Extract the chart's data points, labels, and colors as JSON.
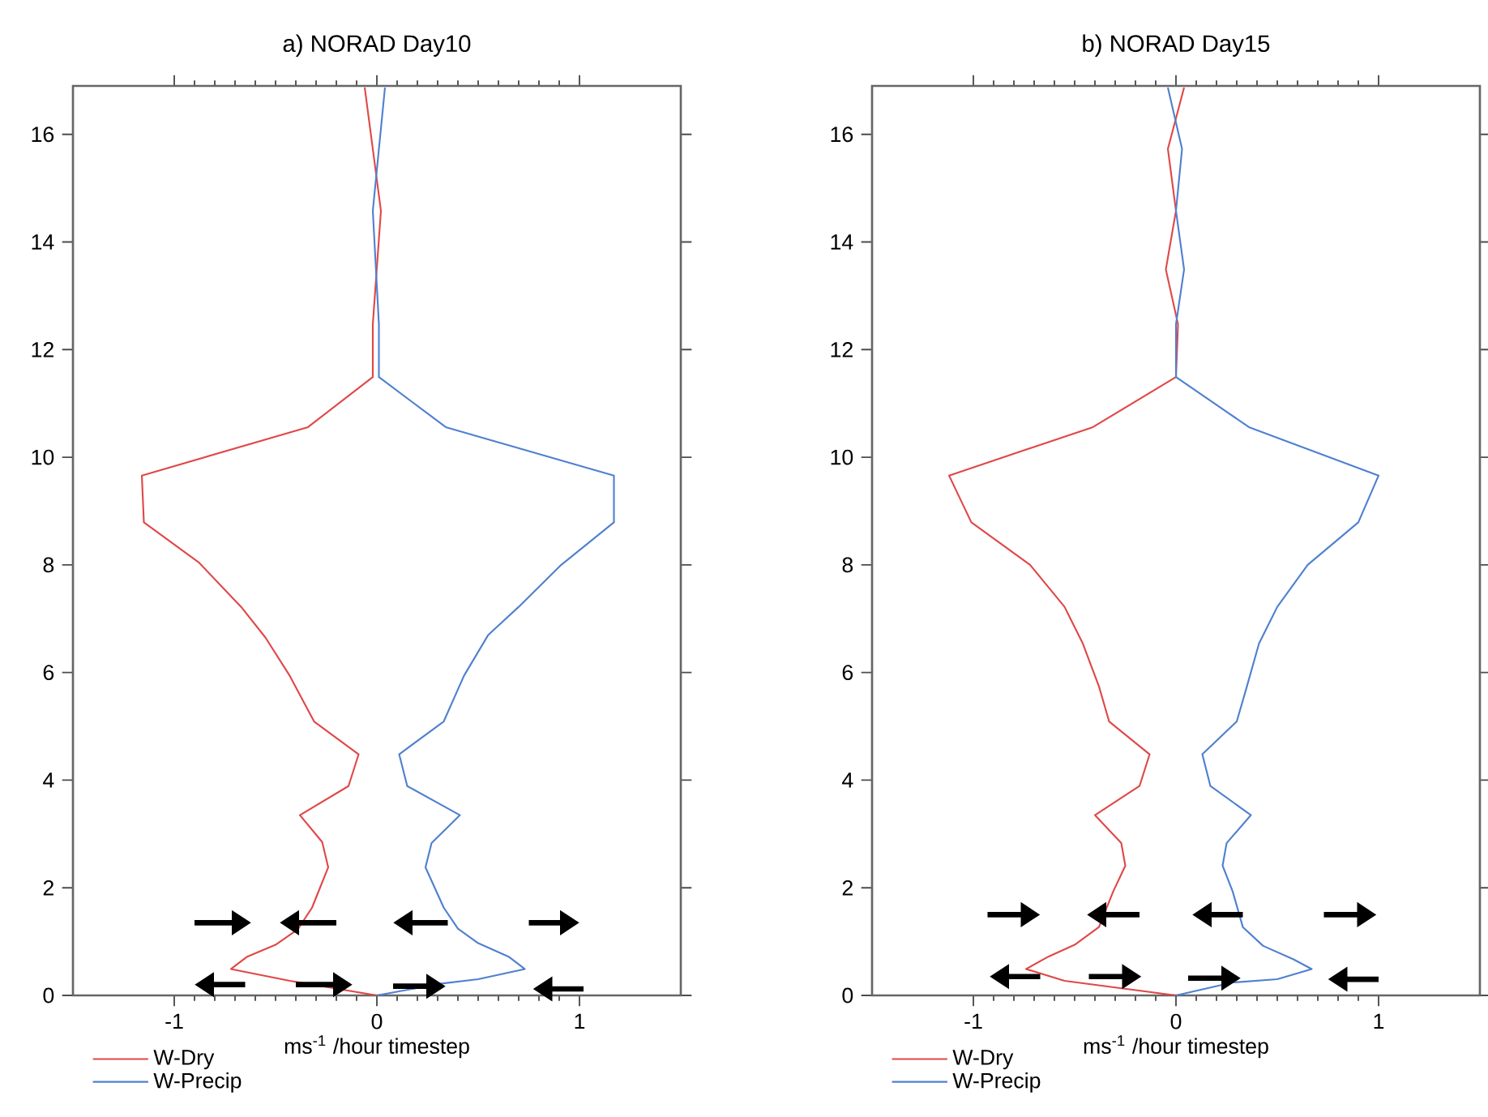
{
  "chart_data": [
    {
      "type": "line",
      "title": "a) NORAD Day10",
      "xlabel": "ms$^{-1}$ /hour timestep",
      "xlim": [
        -1.5,
        1.5
      ],
      "ylim": [
        0,
        16.9
      ],
      "xticks": [
        -1,
        0,
        1
      ],
      "yticks": [
        0,
        2,
        4,
        6,
        8,
        10,
        12,
        14,
        16
      ],
      "legend": "bottom left",
      "series": [
        {
          "name": "W-Dry",
          "color": "#e04848",
          "x": [
            0,
            -0.43,
            -0.72,
            -0.64,
            -0.5,
            -0.39,
            -0.32,
            -0.24,
            -0.27,
            -0.38,
            -0.14,
            -0.09,
            -0.31,
            -0.43,
            -0.55,
            -0.67,
            -0.88,
            -1.15,
            -1.16,
            -0.34,
            -0.02,
            -0.02,
            0.02,
            -0.06
          ],
          "values": [
            0,
            0.27,
            0.49,
            0.72,
            0.94,
            1.23,
            1.63,
            2.38,
            2.85,
            3.35,
            3.89,
            4.48,
            5.09,
            5.94,
            6.65,
            7.22,
            8.05,
            8.79,
            9.66,
            10.56,
            11.49,
            12.47,
            14.58,
            16.87
          ]
        },
        {
          "name": "W-Precip",
          "color": "#5080d0",
          "x": [
            0,
            0.32,
            0.5,
            0.73,
            0.65,
            0.5,
            0.4,
            0.33,
            0.24,
            0.27,
            0.41,
            0.15,
            0.11,
            0.33,
            0.43,
            0.55,
            0.7,
            0.91,
            1.17,
            1.17,
            0.34,
            0.01,
            0.01,
            -0.02,
            0.04
          ],
          "values": [
            0,
            0.22,
            0.3,
            0.49,
            0.72,
            0.97,
            1.24,
            1.63,
            2.38,
            2.83,
            3.35,
            3.89,
            4.48,
            5.09,
            5.94,
            6.7,
            7.22,
            8.0,
            8.79,
            9.66,
            10.56,
            11.49,
            12.47,
            14.58,
            16.87
          ]
        }
      ]
    },
    {
      "type": "line",
      "title": "b) NORAD Day15",
      "xlabel": "ms$^{-1}$ /hour timestep",
      "xlim": [
        -1.5,
        1.5
      ],
      "ylim": [
        0,
        16.9
      ],
      "xticks": [
        -1,
        0,
        1
      ],
      "yticks": [
        0,
        2,
        4,
        6,
        8,
        10,
        12,
        14,
        16
      ],
      "legend": "bottom left",
      "series": [
        {
          "name": "W-Dry",
          "color": "#e04848",
          "x": [
            0,
            -0.55,
            -0.74,
            -0.63,
            -0.5,
            -0.38,
            -0.31,
            -0.25,
            -0.27,
            -0.4,
            -0.18,
            -0.13,
            -0.33,
            -0.38,
            -0.46,
            -0.55,
            -0.72,
            -1.01,
            -1.12,
            -0.41,
            0,
            0.01,
            -0.05,
            0,
            -0.04,
            0.04
          ],
          "values": [
            0,
            0.27,
            0.49,
            0.72,
            0.94,
            1.27,
            1.93,
            2.41,
            2.83,
            3.35,
            3.89,
            4.48,
            5.09,
            5.74,
            6.54,
            7.22,
            8.0,
            8.79,
            9.66,
            10.56,
            11.49,
            12.47,
            13.49,
            14.58,
            15.73,
            16.87
          ]
        },
        {
          "name": "W-Precip",
          "color": "#5080d0",
          "x": [
            0,
            0.28,
            0.5,
            0.67,
            0.58,
            0.43,
            0.33,
            0.28,
            0.23,
            0.25,
            0.37,
            0.17,
            0.13,
            0.3,
            0.35,
            0.41,
            0.5,
            0.65,
            0.9,
            1.0,
            0.36,
            0,
            0,
            0.04,
            0,
            0.03,
            -0.04
          ],
          "values": [
            0,
            0.24,
            0.3,
            0.49,
            0.67,
            0.92,
            1.27,
            1.93,
            2.41,
            2.83,
            3.35,
            3.89,
            4.48,
            5.09,
            5.74,
            6.54,
            7.22,
            8.0,
            8.79,
            9.66,
            10.56,
            11.49,
            12.47,
            13.49,
            14.58,
            15.73,
            16.87
          ]
        }
      ]
    }
  ]
}
